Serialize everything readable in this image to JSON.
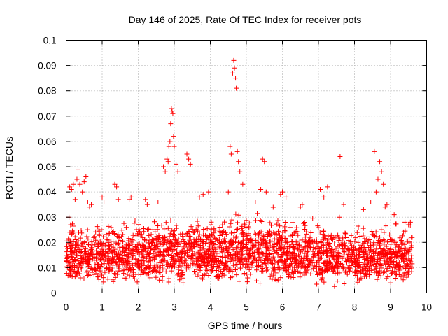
{
  "chart_data": {
    "type": "scatter",
    "title": "Day 146 of 2025, Rate Of TEC Index for receiver pots",
    "xlabel": "GPS time / hours",
    "ylabel": "ROTI / TECUs",
    "xlim": [
      0,
      10
    ],
    "ylim": [
      0,
      0.1
    ],
    "xticks": [
      "0",
      "1",
      "2",
      "3",
      "4",
      "5",
      "6",
      "7",
      "8",
      "9",
      "10"
    ],
    "yticks": [
      "0",
      "0.01",
      "0.02",
      "0.03",
      "0.04",
      "0.05",
      "0.06",
      "0.07",
      "0.08",
      "0.09",
      "0.1"
    ],
    "grid": true,
    "marker": "+",
    "series": [
      {
        "name": "ROTI",
        "color": "#ff0000",
        "points": [
          [
            0.05,
            0.012
          ],
          [
            0.08,
            0.03
          ],
          [
            0.1,
            0.042
          ],
          [
            0.15,
            0.041
          ],
          [
            0.2,
            0.043
          ],
          [
            0.25,
            0.037
          ],
          [
            0.3,
            0.045
          ],
          [
            0.33,
            0.049
          ],
          [
            0.38,
            0.043
          ],
          [
            0.45,
            0.04
          ],
          [
            0.5,
            0.044
          ],
          [
            0.55,
            0.046
          ],
          [
            0.6,
            0.036
          ],
          [
            0.65,
            0.034
          ],
          [
            0.7,
            0.035
          ],
          [
            1.0,
            0.038
          ],
          [
            1.05,
            0.036
          ],
          [
            1.35,
            0.043
          ],
          [
            1.4,
            0.042
          ],
          [
            1.45,
            0.037
          ],
          [
            1.75,
            0.037
          ],
          [
            1.8,
            0.038
          ],
          [
            2.2,
            0.037
          ],
          [
            2.25,
            0.035
          ],
          [
            2.55,
            0.036
          ],
          [
            2.7,
            0.05
          ],
          [
            2.75,
            0.048
          ],
          [
            2.8,
            0.053
          ],
          [
            2.83,
            0.052
          ],
          [
            2.85,
            0.058
          ],
          [
            2.88,
            0.06
          ],
          [
            2.9,
            0.067
          ],
          [
            2.92,
            0.073
          ],
          [
            2.94,
            0.072
          ],
          [
            2.96,
            0.071
          ],
          [
            2.98,
            0.062
          ],
          [
            3.0,
            0.058
          ],
          [
            3.05,
            0.051
          ],
          [
            3.1,
            0.048
          ],
          [
            3.35,
            0.055
          ],
          [
            3.4,
            0.053
          ],
          [
            3.45,
            0.051
          ],
          [
            3.7,
            0.038
          ],
          [
            3.8,
            0.039
          ],
          [
            3.95,
            0.04
          ],
          [
            4.5,
            0.04
          ],
          [
            4.55,
            0.058
          ],
          [
            4.58,
            0.055
          ],
          [
            4.62,
            0.087
          ],
          [
            4.65,
            0.092
          ],
          [
            4.67,
            0.089
          ],
          [
            4.7,
            0.085
          ],
          [
            4.72,
            0.081
          ],
          [
            4.75,
            0.056
          ],
          [
            4.78,
            0.052
          ],
          [
            4.82,
            0.048
          ],
          [
            4.9,
            0.043
          ],
          [
            5.25,
            0.036
          ],
          [
            5.4,
            0.041
          ],
          [
            5.45,
            0.053
          ],
          [
            5.5,
            0.052
          ],
          [
            5.55,
            0.04
          ],
          [
            5.95,
            0.039
          ],
          [
            6.0,
            0.04
          ],
          [
            6.1,
            0.038
          ],
          [
            6.5,
            0.034
          ],
          [
            6.55,
            0.035
          ],
          [
            7.05,
            0.041
          ],
          [
            7.15,
            0.038
          ],
          [
            7.25,
            0.042
          ],
          [
            7.6,
            0.054
          ],
          [
            7.7,
            0.035
          ],
          [
            8.25,
            0.033
          ],
          [
            8.45,
            0.036
          ],
          [
            8.55,
            0.056
          ],
          [
            8.6,
            0.04
          ],
          [
            8.65,
            0.045
          ],
          [
            8.7,
            0.052
          ],
          [
            8.75,
            0.048
          ],
          [
            8.8,
            0.043
          ],
          [
            8.85,
            0.034
          ],
          [
            8.9,
            0.035
          ],
          [
            9.1,
            0.031
          ],
          [
            9.4,
            0.028
          ],
          [
            9.5,
            0.027
          ],
          [
            9.55,
            0.028
          ],
          [
            9.6,
            0.022
          ]
        ]
      }
    ],
    "baseline_segments": [
      {
        "x_start": 0.0,
        "x_end": 0.8,
        "min": 0.003,
        "max": 0.03
      },
      {
        "x_start": 0.8,
        "x_end": 1.6,
        "min": 0.003,
        "max": 0.031
      },
      {
        "x_start": 1.6,
        "x_end": 2.4,
        "min": 0.003,
        "max": 0.03
      },
      {
        "x_start": 2.4,
        "x_end": 3.2,
        "min": 0.003,
        "max": 0.032
      },
      {
        "x_start": 3.2,
        "x_end": 4.0,
        "min": 0.003,
        "max": 0.031
      },
      {
        "x_start": 4.0,
        "x_end": 4.8,
        "min": 0.003,
        "max": 0.033
      },
      {
        "x_start": 4.8,
        "x_end": 5.6,
        "min": 0.003,
        "max": 0.034
      },
      {
        "x_start": 5.6,
        "x_end": 6.1,
        "min": 0.003,
        "max": 0.034
      },
      {
        "x_start": 6.1,
        "x_end": 6.9,
        "min": 0.003,
        "max": 0.031
      },
      {
        "x_start": 6.9,
        "x_end": 7.7,
        "min": 0.002,
        "max": 0.03
      },
      {
        "x_start": 7.7,
        "x_end": 8.5,
        "min": 0.003,
        "max": 0.028
      },
      {
        "x_start": 8.5,
        "x_end": 9.6,
        "min": 0.003,
        "max": 0.029
      }
    ]
  }
}
